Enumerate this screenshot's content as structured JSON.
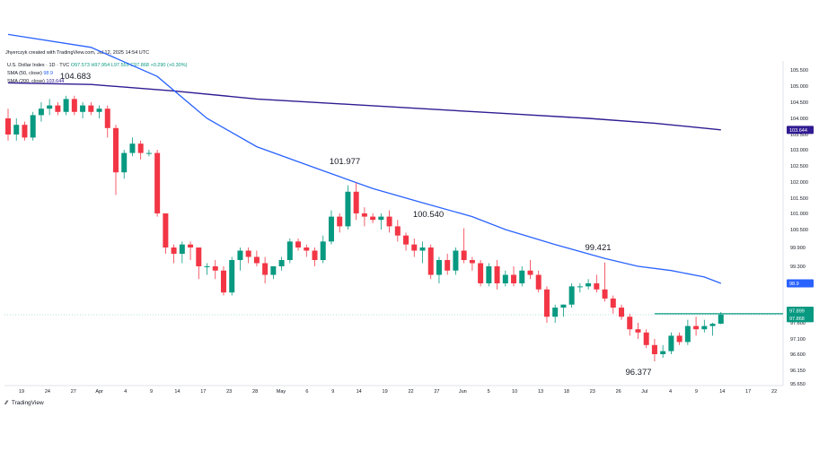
{
  "header": {
    "credit": "Jhyerczyk created with TradingView.com, Jul 12, 2025 14:54 UTC",
    "symbol_line": "U.S. Dollar Index · 1D · TVC",
    "ohlc": "O97.573  H97.954  L97.555  C97.868  +0.290 (+0.30%)",
    "sma50_label": "SMA (50, close)",
    "sma50_value": "98.9",
    "sma200_label": "SMA (200, close)",
    "sma200_value": "103.644"
  },
  "footer": {
    "brand": "TradingView"
  },
  "colors": {
    "up": "#089981",
    "down": "#f23645",
    "sma50": "#2962ff",
    "sma200": "#311b92",
    "level_line": "#089981"
  },
  "chart_data": {
    "type": "candlestick",
    "title": "U.S. Dollar Index · 1D · TVC",
    "y_ticks": [
      "105.500",
      "105.000",
      "104.500",
      "104.000",
      "103.500",
      "103.000",
      "102.500",
      "102.000",
      "101.500",
      "101.000",
      "100.500",
      "99.900",
      "99.300",
      "98.900",
      "97.600",
      "97.100",
      "96.600",
      "96.150",
      "95.650"
    ],
    "ylim": [
      95.5,
      105.9
    ],
    "x_tick_labels": [
      "19",
      "24",
      "27",
      "Apr",
      "4",
      "9",
      "14",
      "17",
      "23",
      "28",
      "May",
      "6",
      "9",
      "14",
      "19",
      "22",
      "27",
      "Jun",
      "5",
      "10",
      "13",
      "18",
      "23",
      "26",
      "Jul",
      "4",
      "9",
      "14",
      "17",
      "22"
    ],
    "annotations": [
      {
        "text": "104.683",
        "type": "high"
      },
      {
        "text": "101.977",
        "type": "high"
      },
      {
        "text": "100.540",
        "type": "high"
      },
      {
        "text": "99.421",
        "type": "high"
      },
      {
        "text": "96.377",
        "type": "low"
      }
    ],
    "price_labels": {
      "sma200": "103.644",
      "sma50": "98.9",
      "level": "97.899",
      "last": "97.868"
    },
    "horizontal_level": 97.899,
    "candles": [
      {
        "o": 104.0,
        "h": 104.3,
        "l": 103.3,
        "c": 103.5
      },
      {
        "o": 103.5,
        "h": 104.0,
        "l": 103.3,
        "c": 103.8
      },
      {
        "o": 103.8,
        "h": 103.9,
        "l": 103.3,
        "c": 103.4
      },
      {
        "o": 103.4,
        "h": 104.2,
        "l": 103.3,
        "c": 104.1
      },
      {
        "o": 104.1,
        "h": 104.5,
        "l": 103.9,
        "c": 104.3
      },
      {
        "o": 104.3,
        "h": 104.6,
        "l": 104.1,
        "c": 104.4
      },
      {
        "o": 104.4,
        "h": 104.5,
        "l": 104.1,
        "c": 104.2
      },
      {
        "o": 104.2,
        "h": 104.7,
        "l": 104.1,
        "c": 104.6
      },
      {
        "o": 104.6,
        "h": 104.7,
        "l": 104.1,
        "c": 104.2
      },
      {
        "o": 104.2,
        "h": 104.5,
        "l": 104.0,
        "c": 104.4
      },
      {
        "o": 104.4,
        "h": 104.5,
        "l": 104.1,
        "c": 104.2
      },
      {
        "o": 104.2,
        "h": 104.4,
        "l": 104.0,
        "c": 104.3
      },
      {
        "o": 104.3,
        "h": 104.4,
        "l": 103.4,
        "c": 103.7
      },
      {
        "o": 103.7,
        "h": 103.8,
        "l": 101.6,
        "c": 102.3
      },
      {
        "o": 102.3,
        "h": 103.0,
        "l": 102.1,
        "c": 102.9
      },
      {
        "o": 102.9,
        "h": 103.4,
        "l": 102.8,
        "c": 103.2
      },
      {
        "o": 103.2,
        "h": 103.3,
        "l": 102.7,
        "c": 102.9
      },
      {
        "o": 102.9,
        "h": 103.0,
        "l": 102.8,
        "c": 102.9
      },
      {
        "o": 102.9,
        "h": 103.0,
        "l": 100.9,
        "c": 101.0
      },
      {
        "o": 101.0,
        "h": 101.0,
        "l": 99.7,
        "c": 99.9
      },
      {
        "o": 99.9,
        "h": 100.0,
        "l": 99.4,
        "c": 99.7
      },
      {
        "o": 99.7,
        "h": 100.1,
        "l": 99.4,
        "c": 100.0
      },
      {
        "o": 100.0,
        "h": 100.1,
        "l": 99.5,
        "c": 99.9
      },
      {
        "o": 99.9,
        "h": 99.9,
        "l": 99.0,
        "c": 99.3
      },
      {
        "o": 99.3,
        "h": 99.4,
        "l": 99.1,
        "c": 99.3
      },
      {
        "o": 99.3,
        "h": 99.5,
        "l": 99.0,
        "c": 99.2
      },
      {
        "o": 99.2,
        "h": 99.3,
        "l": 98.5,
        "c": 98.6
      },
      {
        "o": 98.6,
        "h": 99.6,
        "l": 98.5,
        "c": 99.5
      },
      {
        "o": 99.5,
        "h": 99.9,
        "l": 99.2,
        "c": 99.8
      },
      {
        "o": 99.8,
        "h": 99.9,
        "l": 99.4,
        "c": 99.6
      },
      {
        "o": 99.6,
        "h": 99.8,
        "l": 99.3,
        "c": 99.4
      },
      {
        "o": 99.4,
        "h": 99.6,
        "l": 98.9,
        "c": 99.1
      },
      {
        "o": 99.1,
        "h": 99.3,
        "l": 99.0,
        "c": 99.3
      },
      {
        "o": 99.3,
        "h": 99.6,
        "l": 99.2,
        "c": 99.5
      },
      {
        "o": 99.5,
        "h": 100.2,
        "l": 99.4,
        "c": 100.1
      },
      {
        "o": 100.1,
        "h": 100.2,
        "l": 99.8,
        "c": 99.9
      },
      {
        "o": 99.9,
        "h": 100.0,
        "l": 99.6,
        "c": 99.8
      },
      {
        "o": 99.8,
        "h": 99.9,
        "l": 99.3,
        "c": 99.5
      },
      {
        "o": 99.5,
        "h": 100.3,
        "l": 99.4,
        "c": 100.1
      },
      {
        "o": 100.1,
        "h": 101.1,
        "l": 100.0,
        "c": 100.9
      },
      {
        "o": 100.9,
        "h": 101.0,
        "l": 100.4,
        "c": 100.6
      },
      {
        "o": 100.6,
        "h": 101.9,
        "l": 100.5,
        "c": 101.7
      },
      {
        "o": 101.7,
        "h": 101.98,
        "l": 100.8,
        "c": 101.0
      },
      {
        "o": 101.0,
        "h": 101.2,
        "l": 100.6,
        "c": 100.9
      },
      {
        "o": 100.9,
        "h": 101.0,
        "l": 100.7,
        "c": 100.8
      },
      {
        "o": 100.8,
        "h": 101.0,
        "l": 100.5,
        "c": 100.9
      },
      {
        "o": 100.9,
        "h": 101.1,
        "l": 100.4,
        "c": 100.6
      },
      {
        "o": 100.6,
        "h": 100.8,
        "l": 100.1,
        "c": 100.3
      },
      {
        "o": 100.3,
        "h": 100.4,
        "l": 99.8,
        "c": 100.0
      },
      {
        "o": 100.0,
        "h": 100.2,
        "l": 99.6,
        "c": 99.8
      },
      {
        "o": 99.8,
        "h": 100.1,
        "l": 99.4,
        "c": 99.9
      },
      {
        "o": 99.9,
        "h": 100.0,
        "l": 99.0,
        "c": 99.1
      },
      {
        "o": 99.1,
        "h": 99.6,
        "l": 98.9,
        "c": 99.5
      },
      {
        "o": 99.5,
        "h": 99.7,
        "l": 99.1,
        "c": 99.2
      },
      {
        "o": 99.2,
        "h": 99.9,
        "l": 99.1,
        "c": 99.8
      },
      {
        "o": 99.8,
        "h": 100.54,
        "l": 99.4,
        "c": 99.5
      },
      {
        "o": 99.5,
        "h": 99.6,
        "l": 99.2,
        "c": 99.4
      },
      {
        "o": 99.4,
        "h": 99.5,
        "l": 98.8,
        "c": 98.9
      },
      {
        "o": 98.9,
        "h": 99.4,
        "l": 98.8,
        "c": 99.3
      },
      {
        "o": 99.3,
        "h": 99.5,
        "l": 98.7,
        "c": 98.9
      },
      {
        "o": 98.9,
        "h": 99.2,
        "l": 98.8,
        "c": 99.1
      },
      {
        "o": 99.1,
        "h": 99.3,
        "l": 98.8,
        "c": 98.9
      },
      {
        "o": 98.9,
        "h": 99.3,
        "l": 98.8,
        "c": 99.2
      },
      {
        "o": 99.2,
        "h": 99.5,
        "l": 99.0,
        "c": 99.1
      },
      {
        "o": 99.1,
        "h": 99.2,
        "l": 98.6,
        "c": 98.7
      },
      {
        "o": 98.7,
        "h": 98.8,
        "l": 97.6,
        "c": 97.8
      },
      {
        "o": 97.8,
        "h": 98.2,
        "l": 97.6,
        "c": 98.1
      },
      {
        "o": 98.1,
        "h": 98.2,
        "l": 97.8,
        "c": 98.2
      },
      {
        "o": 98.2,
        "h": 98.9,
        "l": 98.1,
        "c": 98.8
      },
      {
        "o": 98.8,
        "h": 98.9,
        "l": 98.6,
        "c": 98.8
      },
      {
        "o": 98.8,
        "h": 99.0,
        "l": 98.7,
        "c": 98.9
      },
      {
        "o": 98.9,
        "h": 99.1,
        "l": 98.6,
        "c": 98.7
      },
      {
        "o": 98.7,
        "h": 99.42,
        "l": 98.3,
        "c": 98.4
      },
      {
        "o": 98.4,
        "h": 98.5,
        "l": 97.9,
        "c": 98.1
      },
      {
        "o": 98.1,
        "h": 98.2,
        "l": 97.7,
        "c": 97.8
      },
      {
        "o": 97.8,
        "h": 97.9,
        "l": 97.2,
        "c": 97.4
      },
      {
        "o": 97.4,
        "h": 97.6,
        "l": 97.1,
        "c": 97.3
      },
      {
        "o": 97.3,
        "h": 97.4,
        "l": 96.8,
        "c": 96.9
      },
      {
        "o": 96.9,
        "h": 97.1,
        "l": 96.4,
        "c": 96.6
      },
      {
        "o": 96.6,
        "h": 96.9,
        "l": 96.5,
        "c": 96.7
      },
      {
        "o": 96.7,
        "h": 97.3,
        "l": 96.6,
        "c": 97.2
      },
      {
        "o": 97.2,
        "h": 97.3,
        "l": 96.9,
        "c": 97.0
      },
      {
        "o": 97.0,
        "h": 97.7,
        "l": 96.9,
        "c": 97.5
      },
      {
        "o": 97.5,
        "h": 97.8,
        "l": 97.2,
        "c": 97.4
      },
      {
        "o": 97.4,
        "h": 97.7,
        "l": 97.3,
        "c": 97.5
      },
      {
        "o": 97.5,
        "h": 97.6,
        "l": 97.2,
        "c": 97.57
      },
      {
        "o": 97.573,
        "h": 97.954,
        "l": 97.555,
        "c": 97.868
      }
    ],
    "sma50": [
      {
        "i": 0,
        "v": 106.6
      },
      {
        "i": 10,
        "v": 106.2
      },
      {
        "i": 18,
        "v": 105.3
      },
      {
        "i": 24,
        "v": 104.0
      },
      {
        "i": 30,
        "v": 103.1
      },
      {
        "i": 38,
        "v": 102.35
      },
      {
        "i": 44,
        "v": 101.8
      },
      {
        "i": 50,
        "v": 101.35
      },
      {
        "i": 56,
        "v": 100.9
      },
      {
        "i": 60,
        "v": 100.5
      },
      {
        "i": 66,
        "v": 100.0
      },
      {
        "i": 72,
        "v": 99.55
      },
      {
        "i": 76,
        "v": 99.3
      },
      {
        "i": 80,
        "v": 99.2
      },
      {
        "i": 84,
        "v": 99.05
      },
      {
        "i": 86,
        "v": 98.9
      }
    ],
    "sma200": [
      {
        "i": 0,
        "v": 105.1
      },
      {
        "i": 10,
        "v": 105.05
      },
      {
        "i": 20,
        "v": 104.85
      },
      {
        "i": 30,
        "v": 104.6
      },
      {
        "i": 40,
        "v": 104.45
      },
      {
        "i": 50,
        "v": 104.3
      },
      {
        "i": 60,
        "v": 104.15
      },
      {
        "i": 70,
        "v": 104.0
      },
      {
        "i": 78,
        "v": 103.85
      },
      {
        "i": 86,
        "v": 103.644
      }
    ]
  }
}
